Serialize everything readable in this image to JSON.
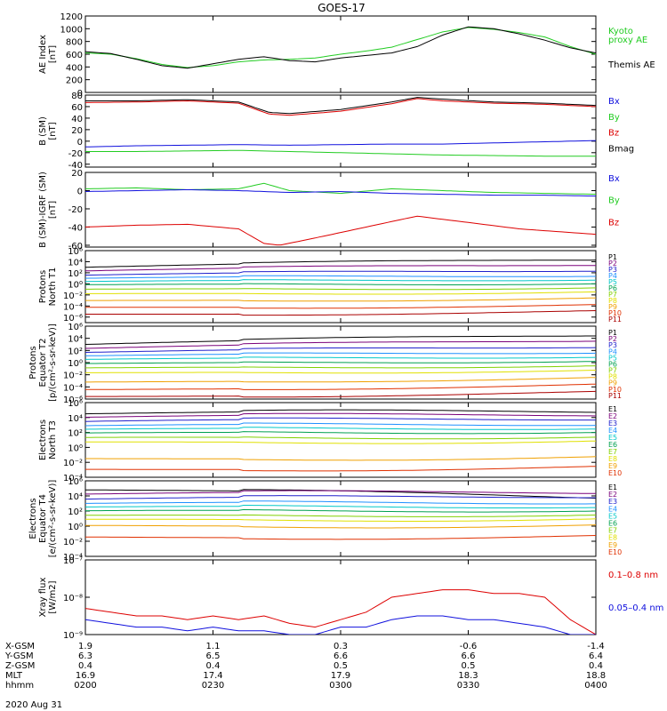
{
  "title": "GOES-17",
  "date": "2020 Aug 31",
  "colors": {
    "black": "#000000",
    "green": "#22cc22",
    "blue": "#1010dd",
    "red": "#dd0000",
    "proton_channels": [
      "#000000",
      "#7a007a",
      "#2020cc",
      "#1e90ff",
      "#00c8c8",
      "#00a050",
      "#80d000",
      "#e0e000",
      "#f0a000",
      "#e03000",
      "#aa0000"
    ],
    "electron_channels": [
      "#000000",
      "#7a007a",
      "#2020cc",
      "#1e90ff",
      "#00c8c8",
      "#00a050",
      "#80d000",
      "#e0e000",
      "#f0a000",
      "#e03000",
      "#aa0000"
    ]
  },
  "chart_data": [
    {
      "id": "ae",
      "type": "line",
      "ylabel_lines": [
        "AE Index",
        "[nT]"
      ],
      "ylim": [
        0,
        1200
      ],
      "yticks": [
        "0",
        "200",
        "400",
        "600",
        "800",
        "1000",
        "1200"
      ],
      "ytick_values": [
        0,
        200,
        400,
        600,
        800,
        1000,
        1200
      ],
      "legend": [
        {
          "label_lines": [
            "Kyoto",
            "proxy AE"
          ],
          "color": "green"
        },
        {
          "label_lines": [
            "Themis AE"
          ],
          "color": "black"
        }
      ],
      "series": [
        {
          "color": "green",
          "x": [
            0,
            5,
            10,
            15,
            20,
            25,
            30,
            35,
            40,
            45,
            50,
            55,
            60,
            65,
            70,
            75,
            80,
            85,
            90,
            95,
            100
          ],
          "y": [
            620,
            600,
            530,
            440,
            390,
            420,
            480,
            510,
            520,
            540,
            600,
            650,
            710,
            830,
            950,
            1020,
            990,
            940,
            870,
            720,
            600
          ]
        },
        {
          "color": "black",
          "x": [
            0,
            5,
            10,
            15,
            20,
            25,
            30,
            35,
            40,
            45,
            50,
            55,
            60,
            65,
            70,
            75,
            80,
            85,
            90,
            95,
            100
          ],
          "y": [
            640,
            610,
            520,
            420,
            380,
            450,
            520,
            560,
            500,
            480,
            540,
            580,
            620,
            720,
            900,
            1030,
            1000,
            920,
            820,
            700,
            620
          ]
        }
      ]
    },
    {
      "id": "bsm",
      "type": "line",
      "ylabel_lines": [
        "B (SM)",
        "[nT]"
      ],
      "ylim": [
        -45,
        80
      ],
      "yticks": [
        "-40",
        "-20",
        "0",
        "20",
        "40",
        "60",
        "80"
      ],
      "ytick_values": [
        -40,
        -20,
        0,
        20,
        40,
        60,
        80
      ],
      "legend": [
        {
          "label_lines": [
            "Bx"
          ],
          "color": "blue"
        },
        {
          "label_lines": [
            "By"
          ],
          "color": "green"
        },
        {
          "label_lines": [
            "Bz"
          ],
          "color": "red"
        },
        {
          "label_lines": [
            "Bmag"
          ],
          "color": "black"
        }
      ],
      "series": [
        {
          "color": "blue",
          "x": [
            0,
            10,
            20,
            30,
            40,
            50,
            60,
            70,
            80,
            90,
            100
          ],
          "y": [
            -10,
            -8,
            -7,
            -6,
            -7,
            -6,
            -5,
            -5,
            -3,
            -1,
            1
          ]
        },
        {
          "color": "green",
          "x": [
            0,
            10,
            20,
            30,
            40,
            50,
            60,
            70,
            80,
            90,
            100
          ],
          "y": [
            -18,
            -18,
            -17,
            -16,
            -18,
            -20,
            -22,
            -24,
            -25,
            -26,
            -26
          ]
        },
        {
          "color": "black",
          "x": [
            0,
            10,
            20,
            30,
            36,
            40,
            50,
            60,
            65,
            70,
            80,
            90,
            100
          ],
          "y": [
            70,
            70,
            72,
            68,
            50,
            48,
            55,
            68,
            76,
            73,
            68,
            66,
            62
          ]
        },
        {
          "color": "red",
          "x": [
            0,
            10,
            20,
            30,
            36,
            40,
            50,
            60,
            65,
            70,
            80,
            90,
            100
          ],
          "y": [
            67,
            68,
            70,
            66,
            47,
            45,
            52,
            65,
            74,
            70,
            66,
            64,
            60
          ]
        }
      ]
    },
    {
      "id": "bigrf",
      "type": "line",
      "ylabel_lines": [
        "B (SM)-IGRF (SM)",
        "[nT]"
      ],
      "ylim": [
        -62,
        20
      ],
      "yticks": [
        "-60",
        "-40",
        "-20",
        "0",
        "20"
      ],
      "ytick_values": [
        -60,
        -40,
        -20,
        0,
        20
      ],
      "legend": [
        {
          "label_lines": [
            "Bx"
          ],
          "color": "blue"
        },
        {
          "label_lines": [
            "By"
          ],
          "color": "green"
        },
        {
          "label_lines": [
            "Bz"
          ],
          "color": "red"
        }
      ],
      "series": [
        {
          "color": "green",
          "x": [
            0,
            10,
            20,
            30,
            35,
            40,
            50,
            60,
            70,
            80,
            90,
            100
          ],
          "y": [
            2,
            3,
            1,
            2,
            8,
            0,
            -3,
            2,
            0,
            -2,
            -3,
            -4
          ]
        },
        {
          "color": "blue",
          "x": [
            0,
            10,
            20,
            30,
            40,
            50,
            60,
            70,
            80,
            90,
            100
          ],
          "y": [
            -1,
            0,
            1,
            0,
            -2,
            -1,
            -3,
            -4,
            -5,
            -5,
            -6
          ]
        },
        {
          "color": "red",
          "x": [
            0,
            10,
            20,
            30,
            35,
            38,
            45,
            55,
            65,
            75,
            85,
            100
          ],
          "y": [
            -40,
            -38,
            -37,
            -42,
            -58,
            -60,
            -52,
            -40,
            -28,
            -35,
            -42,
            -48
          ]
        }
      ]
    },
    {
      "id": "pn",
      "type": "line",
      "log": true,
      "ylabel_lines": [
        "Protons",
        "North T1"
      ],
      "ylim_exp": [
        -7,
        6
      ],
      "yticks": [
        "10⁶",
        "10⁴",
        "10²",
        "10⁰",
        "10⁻²",
        "10⁻⁴",
        "10⁻⁶"
      ],
      "ytick_exps": [
        6,
        4,
        2,
        0,
        -2,
        -4,
        -6
      ],
      "channels": [
        "P1",
        "P2",
        "P3",
        "P4",
        "P5",
        "P6",
        "P7",
        "P8",
        "P9",
        "P10",
        "P11"
      ],
      "channel_start_log": [
        3.0,
        2.3,
        1.5,
        0.9,
        0.3,
        -0.3,
        -1.1,
        -1.9,
        -3.1,
        -4.3,
        -5.5
      ],
      "channel_end_log": [
        4.5,
        3.6,
        2.6,
        1.7,
        1.0,
        0.3,
        -0.5,
        -1.3,
        -2.5,
        -3.8,
        -5.0
      ]
    },
    {
      "id": "pe",
      "type": "line",
      "log": true,
      "ylabel_lines": [
        "Protons",
        "Equator T2",
        "[p/(cm²-s-sr-keV)]"
      ],
      "ylim_exp": [
        -6,
        6
      ],
      "yticks": [
        "10⁶",
        "10⁴",
        "10²",
        "10⁰",
        "10⁻²",
        "10⁻⁴",
        "10⁻⁶"
      ],
      "ytick_exps": [
        6,
        4,
        2,
        0,
        -2,
        -4,
        -6
      ],
      "channels": [
        "P1",
        "P2",
        "P3",
        "P4",
        "P5",
        "P6",
        "P7",
        "P8",
        "P9",
        "P10",
        "P11"
      ],
      "channel_start_log": [
        3.0,
        2.3,
        1.6,
        1.0,
        0.4,
        -0.3,
        -1.0,
        -1.8,
        -3.3,
        -4.5,
        -5.6
      ],
      "channel_end_log": [
        4.6,
        3.8,
        2.8,
        1.9,
        1.2,
        0.5,
        -0.3,
        -1.1,
        -2.4,
        -3.6,
        -4.9
      ]
    },
    {
      "id": "en",
      "type": "line",
      "log": true,
      "ylabel_lines": [
        "Electrons",
        "North T3"
      ],
      "ylim_exp": [
        -4,
        6
      ],
      "yticks": [
        "10⁶",
        "10⁴",
        "10²",
        "10⁰",
        "10⁻²",
        "10⁻⁴"
      ],
      "ytick_exps": [
        6,
        4,
        2,
        0,
        -2,
        -4
      ],
      "channels": [
        "E1",
        "E2",
        "E3",
        "E4",
        "E5",
        "E6",
        "E7",
        "E8",
        "E9",
        "E10"
      ],
      "channel_start_log": [
        4.5,
        4.0,
        3.4,
        2.8,
        2.3,
        1.8,
        1.2,
        0.6,
        -1.6,
        -3.0
      ],
      "channel_end_log": [
        4.9,
        4.5,
        4.0,
        3.3,
        2.8,
        2.3,
        1.6,
        1.0,
        -1.2,
        -2.6
      ]
    },
    {
      "id": "ee",
      "type": "line",
      "log": true,
      "ylabel_lines": [
        "Electrons",
        "Equator T4",
        "[e/(cm²-s-sr-keV)]"
      ],
      "ylim_exp": [
        -4,
        6
      ],
      "yticks": [
        "10⁶",
        "10⁴",
        "10²",
        "10⁰",
        "10⁻²",
        "10⁻⁴"
      ],
      "ytick_exps": [
        6,
        4,
        2,
        0,
        -2,
        -4
      ],
      "channels": [
        "E1",
        "E2",
        "E3",
        "E4",
        "E5",
        "E6",
        "E7",
        "E8",
        "E9",
        "E10"
      ],
      "channel_start_log": [
        4.8,
        4.2,
        3.5,
        2.9,
        2.4,
        1.9,
        1.3,
        0.8,
        0.0,
        -1.5
      ],
      "channel_end_log": [
        3.9,
        4.6,
        4.1,
        3.3,
        2.8,
        2.3,
        1.7,
        1.1,
        0.2,
        -1.3
      ]
    },
    {
      "id": "xray",
      "type": "line",
      "log": true,
      "ylabel_lines": [
        "Xray flux",
        "[W/m2]"
      ],
      "ylim_exp": [
        -9,
        -7
      ],
      "yticks": [
        "10⁻⁷",
        "10⁻⁸",
        "10⁻⁹"
      ],
      "ytick_exps": [
        -7,
        -8,
        -9
      ],
      "legend": [
        {
          "label_lines": [
            "0.1–0.8 nm"
          ],
          "color": "red"
        },
        {
          "label_lines": [
            "0.05–0.4 nm"
          ],
          "color": "blue"
        }
      ],
      "series": [
        {
          "color": "red",
          "x": [
            0,
            5,
            10,
            15,
            20,
            25,
            30,
            35,
            40,
            45,
            50,
            55,
            60,
            65,
            70,
            75,
            80,
            85,
            90,
            95,
            100
          ],
          "y": [
            -8.3,
            -8.4,
            -8.5,
            -8.5,
            -8.6,
            -8.5,
            -8.6,
            -8.5,
            -8.7,
            -8.8,
            -8.6,
            -8.4,
            -8.0,
            -7.9,
            -7.8,
            -7.8,
            -7.9,
            -7.9,
            -8.0,
            -8.6,
            -9.0
          ]
        },
        {
          "color": "blue",
          "x": [
            0,
            5,
            10,
            15,
            20,
            25,
            30,
            35,
            40,
            45,
            50,
            55,
            60,
            65,
            70,
            75,
            80,
            85,
            90,
            95,
            100
          ],
          "y": [
            -8.6,
            -8.7,
            -8.8,
            -8.8,
            -8.9,
            -8.8,
            -8.9,
            -8.9,
            -9.0,
            -9.0,
            -8.8,
            -8.8,
            -8.6,
            -8.5,
            -8.5,
            -8.6,
            -8.6,
            -8.7,
            -8.8,
            -9.0,
            -9.0
          ]
        }
      ]
    }
  ],
  "x_axis": {
    "rows": [
      {
        "label": "X-GSM",
        "values": [
          "1.9",
          "1.1",
          "0.3",
          "-0.6",
          "-1.4"
        ]
      },
      {
        "label": "Y-GSM",
        "values": [
          "6.3",
          "6.5",
          "6.6",
          "6.6",
          "6.4"
        ]
      },
      {
        "label": "Z-GSM",
        "values": [
          "0.4",
          "0.4",
          "0.5",
          "0.5",
          "0.4"
        ]
      },
      {
        "label": "MLT",
        "values": [
          "16.9",
          "17.4",
          "17.9",
          "18.3",
          "18.8"
        ]
      },
      {
        "label": "hhmm",
        "values": [
          "0200",
          "0230",
          "0300",
          "0330",
          "0400"
        ]
      }
    ]
  }
}
